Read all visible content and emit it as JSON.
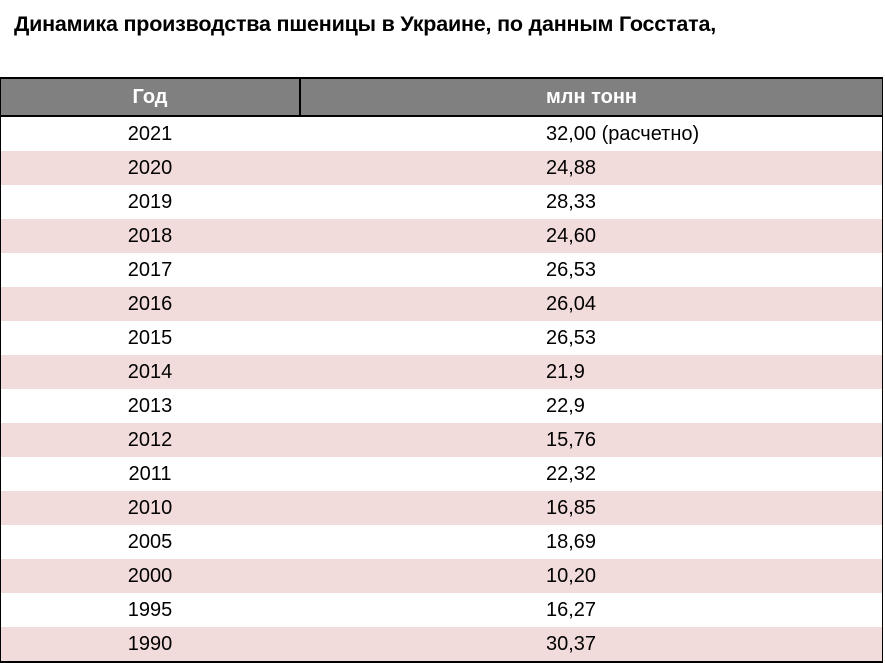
{
  "title": "Динамика производства пшеницы в Украине, по данным Госстата,",
  "table": {
    "headers": {
      "year": "Год",
      "value": "млн тонн"
    },
    "rows": [
      {
        "year": "2021",
        "value": "32,00 (расчетно)"
      },
      {
        "year": "2020",
        "value": "24,88"
      },
      {
        "year": "2019",
        "value": "28,33"
      },
      {
        "year": "2018",
        "value": "24,60"
      },
      {
        "year": "2017",
        "value": "26,53"
      },
      {
        "year": "2016",
        "value": "26,04"
      },
      {
        "year": "2015",
        "value": "26,53"
      },
      {
        "year": "2014",
        "value": "21,9"
      },
      {
        "year": "2013",
        "value": "22,9"
      },
      {
        "year": "2012",
        "value": "15,76"
      },
      {
        "year": "2011",
        "value": "22,32"
      },
      {
        "year": "2010",
        "value": "16,85"
      },
      {
        "year": "2005",
        "value": "18,69"
      },
      {
        "year": "2000",
        "value": "10,20"
      },
      {
        "year": "1995",
        "value": "16,27"
      },
      {
        "year": "1990",
        "value": "30,37"
      }
    ]
  },
  "colors": {
    "header_bg": "#808080",
    "header_text": "#ffffff",
    "row_alt_bg": "#f2dcdb",
    "row_bg": "#ffffff",
    "border": "#000000"
  }
}
